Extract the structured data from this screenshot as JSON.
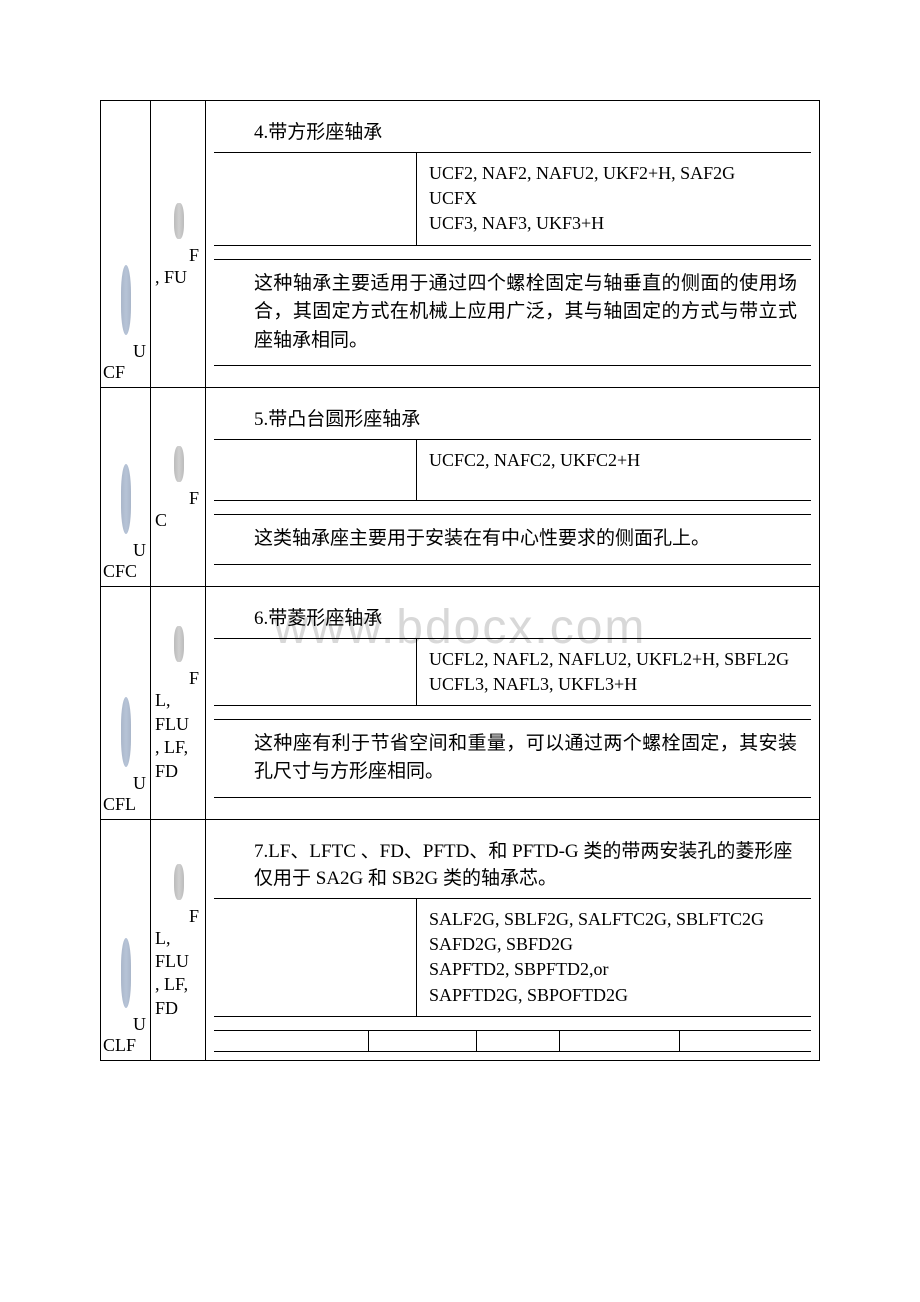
{
  "watermark": "www.bdocx.com",
  "rows": [
    {
      "left_label_top": "U",
      "left_label_bottom": "CF",
      "mid_label_top": "F",
      "mid_label_bottom": ", FU",
      "title": "4.带方形座轴承",
      "codes": "UCF2, NAF2, NAFU2, UKF2+H, SAF2G\nUCFX\nUCF3, NAF3, UKF3+H",
      "desc": "这种轴承主要适用于通过四个螺栓固定与轴垂直的侧面的使用场合，其固定方式在机械上应用广泛，其与轴固定的方式与带立式座轴承相同。"
    },
    {
      "left_label_top": "U",
      "left_label_bottom": "CFC",
      "mid_label_top": "F",
      "mid_label_bottom": "C",
      "title": "5.带凸台圆形座轴承",
      "codes": "UCFC2, NAFC2, UKFC2+H",
      "desc": "这类轴承座主要用于安装在有中心性要求的侧面孔上。"
    },
    {
      "left_label_top": "U",
      "left_label_bottom": "CFL",
      "mid_label_top": "F",
      "mid_label_bottom": "L,\nFLU\n, LF,\nFD",
      "title": "6.带菱形座轴承",
      "codes": "UCFL2, NAFL2, NAFLU2, UKFL2+H, SBFL2G\nUCFL3, NAFL3, UKFL3+H",
      "desc": "这种座有利于节省空间和重量，可以通过两个螺栓固定，其安装孔尺寸与方形座相同。"
    },
    {
      "left_label_top": "U",
      "left_label_bottom": "CLF",
      "mid_label_top": "F",
      "mid_label_bottom": "L,\nFLU\n, LF,\nFD",
      "title": "7.LF、LFTC 、FD、PFTD、和 PFTD-G 类的带两安装孔的菱形座仅用于 SA2G 和 SB2G 类的轴承芯。",
      "codes": "SALF2G, SBLF2G, SALFTC2G, SBLFTC2G\nSAFD2G, SBFD2G\nSAPFTD2, SBPFTD2,or\nSAPFTD2G, SBPOFTD2G",
      "desc": "",
      "multi_spacer": true
    }
  ]
}
